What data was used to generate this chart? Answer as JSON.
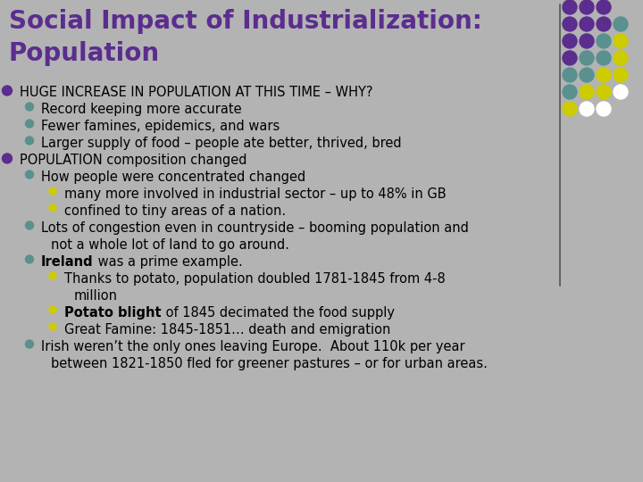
{
  "title_line1": "Social Impact of Industrialization:",
  "title_line2": "Population",
  "title_color": "#5b2d8e",
  "bg_color": "#b3b3b3",
  "title_fontsize": 20,
  "body_fontsize": 10.5,
  "bullet_colors": {
    "purple": "#5b2d8e",
    "teal": "#5a9090",
    "yellow": "#cccc00"
  },
  "dot_grid": {
    "colors": [
      [
        "#5b2d8e",
        "#5b2d8e",
        "#5b2d8e",
        "none"
      ],
      [
        "#5b2d8e",
        "#5b2d8e",
        "#5b2d8e",
        "#5a9090"
      ],
      [
        "#5b2d8e",
        "#5b2d8e",
        "#5a9090",
        "#cccc00"
      ],
      [
        "#5b2d8e",
        "#5a9090",
        "#5a9090",
        "#cccc00"
      ],
      [
        "#5a9090",
        "#5a9090",
        "#cccc00",
        "#cccc00"
      ],
      [
        "#5a9090",
        "#cccc00",
        "#cccc00",
        "#ffffff"
      ],
      [
        "#cccc00",
        "#ffffff",
        "#ffffff",
        "none"
      ]
    ]
  },
  "lines": [
    {
      "ind": 0,
      "bullet": "purple",
      "parts": [
        {
          "t": "HUGE INCREASE IN POPULATION AT THIS TIME – WHY?",
          "b": false
        }
      ]
    },
    {
      "ind": 1,
      "bullet": "teal",
      "parts": [
        {
          "t": "Record keeping more accurate",
          "b": false
        }
      ]
    },
    {
      "ind": 1,
      "bullet": "teal",
      "parts": [
        {
          "t": "Fewer famines, epidemics, and wars",
          "b": false
        }
      ]
    },
    {
      "ind": 1,
      "bullet": "teal",
      "parts": [
        {
          "t": "Larger supply of food – people ate better, thrived, bred",
          "b": false
        }
      ]
    },
    {
      "ind": 0,
      "bullet": "purple",
      "parts": [
        {
          "t": "POPULATION composition changed",
          "b": false
        }
      ]
    },
    {
      "ind": 1,
      "bullet": "teal",
      "parts": [
        {
          "t": "How people were concentrated changed",
          "b": false
        }
      ]
    },
    {
      "ind": 2,
      "bullet": "yellow",
      "parts": [
        {
          "t": "many more involved in industrial sector – up to 48% in GB",
          "b": false
        }
      ]
    },
    {
      "ind": 2,
      "bullet": "yellow",
      "parts": [
        {
          "t": "confined to tiny areas of a nation.",
          "b": false
        }
      ]
    },
    {
      "ind": 1,
      "bullet": "teal",
      "parts": [
        {
          "t": "Lots of congestion even in countryside – booming population and",
          "b": false
        }
      ],
      "cont": "not a whole lot of land to go around."
    },
    {
      "ind": 1,
      "bullet": "teal",
      "parts": [
        {
          "t": "Ireland",
          "b": true
        },
        {
          "t": " was a prime example.",
          "b": false
        }
      ]
    },
    {
      "ind": 2,
      "bullet": "yellow",
      "parts": [
        {
          "t": "Thanks to potato, population doubled 1781-1845 from 4-8",
          "b": false
        }
      ],
      "cont": "million"
    },
    {
      "ind": 2,
      "bullet": "yellow",
      "parts": [
        {
          "t": "Potato blight",
          "b": true
        },
        {
          "t": " of 1845 decimated the food supply",
          "b": false
        }
      ]
    },
    {
      "ind": 2,
      "bullet": "yellow",
      "parts": [
        {
          "t": "Great Famine: 1845-1851… death and emigration",
          "b": false
        }
      ]
    },
    {
      "ind": 1,
      "bullet": "teal",
      "parts": [
        {
          "t": "Irish weren’t the only ones leaving Europe.  About 110k per year",
          "b": false
        }
      ],
      "cont": "between 1821-1850 fled for greener pastures – or for urban areas."
    }
  ]
}
